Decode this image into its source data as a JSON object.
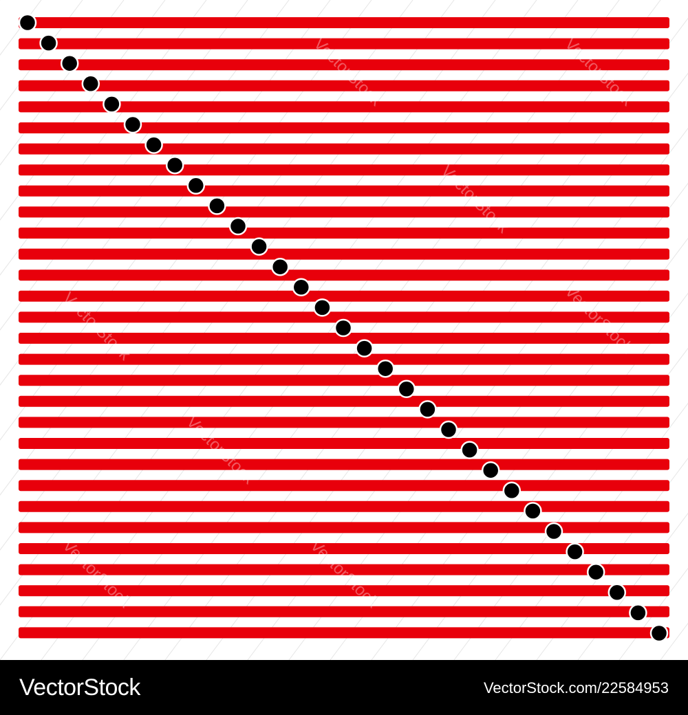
{
  "artwork": {
    "stripe_count": 30,
    "dot_count": 31,
    "colors": {
      "background": "#ffffff",
      "stripe": "#e8000b",
      "dot": "#000000",
      "dot_outline": "#ffffff",
      "watermark_line": "#e6e6e6"
    },
    "watermark_text": "VectorStock"
  },
  "footer": {
    "brand": "VectorStock",
    "image_ref": "VectorStock.com/22584953",
    "colors": {
      "background": "#000000",
      "text": "#ffffff"
    }
  }
}
